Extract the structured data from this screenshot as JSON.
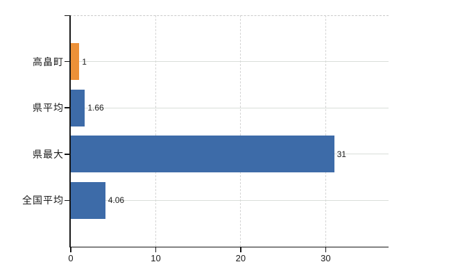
{
  "chart_data": {
    "type": "bar",
    "orientation": "horizontal",
    "title": "",
    "categories": [
      "高畠町",
      "県平均",
      "県最大",
      "全国平均"
    ],
    "values": [
      1,
      1.66,
      31,
      4.06
    ],
    "value_labels": [
      "1",
      "1.66",
      "31",
      "4.06"
    ],
    "bar_colors": [
      "#ED9138",
      "#3D6BA8",
      "#3D6BA8",
      "#3D6BA8"
    ],
    "highlight_category": "高畠町",
    "x_ticks": [
      "0",
      "10",
      "20",
      "30"
    ],
    "x_tick_values": [
      0,
      10,
      20,
      30
    ],
    "xlim": [
      0,
      37.4
    ],
    "xlabel": "",
    "ylabel": "",
    "grid": "on",
    "legend": "none"
  },
  "colors": {
    "highlight_bar": "#ED9138",
    "default_bar": "#3D6BA8",
    "axis": "#151515",
    "grid_h": "#d9ded9",
    "grid_v": "#d4d4d4",
    "top_border": "#c9c9c9",
    "text": "#1a1a1a",
    "background": "#ffffff"
  }
}
